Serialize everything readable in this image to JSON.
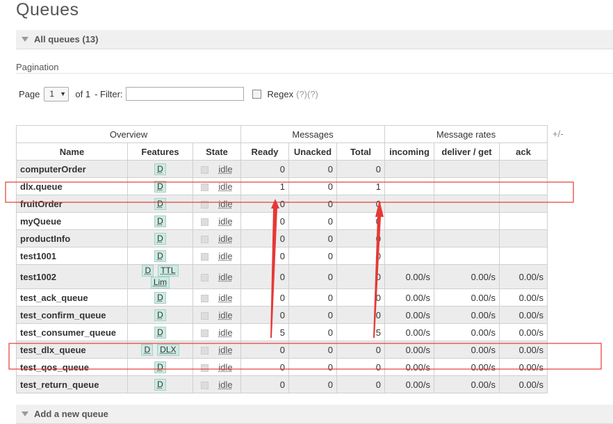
{
  "page_title": "Queues",
  "all_queues": {
    "label": "All queues (13)"
  },
  "pagination": {
    "heading": "Pagination",
    "page_label": "Page",
    "page_value": "1",
    "of_label": "of 1",
    "filter_label": "- Filter:",
    "filter_value": "",
    "regex_label": "Regex",
    "regex_help": "(?)(?)"
  },
  "table": {
    "groups": {
      "overview": "Overview",
      "messages": "Messages",
      "rates": "Message rates",
      "plusminus": "+/-"
    },
    "columns": {
      "name": "Name",
      "features": "Features",
      "state": "State",
      "ready": "Ready",
      "unacked": "Unacked",
      "total": "Total",
      "incoming": "incoming",
      "deliver": "deliver / get",
      "ack": "ack"
    },
    "rows": [
      {
        "name": "computerOrder",
        "features": [
          "D"
        ],
        "state": "idle",
        "ready": "0",
        "unacked": "0",
        "total": "0",
        "incoming": "",
        "deliver": "",
        "ack": ""
      },
      {
        "name": "dlx.queue",
        "features": [
          "D"
        ],
        "state": "idle",
        "ready": "1",
        "unacked": "0",
        "total": "1",
        "incoming": "",
        "deliver": "",
        "ack": ""
      },
      {
        "name": "fruitOrder",
        "features": [
          "D"
        ],
        "state": "idle",
        "ready": "0",
        "unacked": "0",
        "total": "0",
        "incoming": "",
        "deliver": "",
        "ack": ""
      },
      {
        "name": "myQueue",
        "features": [
          "D"
        ],
        "state": "idle",
        "ready": "0",
        "unacked": "0",
        "total": "0",
        "incoming": "",
        "deliver": "",
        "ack": ""
      },
      {
        "name": "productInfo",
        "features": [
          "D"
        ],
        "state": "idle",
        "ready": "0",
        "unacked": "0",
        "total": "0",
        "incoming": "",
        "deliver": "",
        "ack": ""
      },
      {
        "name": "test1001",
        "features": [
          "D"
        ],
        "state": "idle",
        "ready": "0",
        "unacked": "0",
        "total": "0",
        "incoming": "",
        "deliver": "",
        "ack": ""
      },
      {
        "name": "test1002",
        "features": [
          "D",
          "TTL",
          "Lim"
        ],
        "state": "idle",
        "ready": "0",
        "unacked": "0",
        "total": "0",
        "incoming": "0.00/s",
        "deliver": "0.00/s",
        "ack": "0.00/s"
      },
      {
        "name": "test_ack_queue",
        "features": [
          "D"
        ],
        "state": "idle",
        "ready": "0",
        "unacked": "0",
        "total": "0",
        "incoming": "0.00/s",
        "deliver": "0.00/s",
        "ack": "0.00/s"
      },
      {
        "name": "test_confirm_queue",
        "features": [
          "D"
        ],
        "state": "idle",
        "ready": "0",
        "unacked": "0",
        "total": "0",
        "incoming": "0.00/s",
        "deliver": "0.00/s",
        "ack": "0.00/s"
      },
      {
        "name": "test_consumer_queue",
        "features": [
          "D"
        ],
        "state": "idle",
        "ready": "5",
        "unacked": "0",
        "total": "5",
        "incoming": "0.00/s",
        "deliver": "0.00/s",
        "ack": "0.00/s"
      },
      {
        "name": "test_dlx_queue",
        "features": [
          "D",
          "DLX"
        ],
        "state": "idle",
        "ready": "0",
        "unacked": "0",
        "total": "0",
        "incoming": "0.00/s",
        "deliver": "0.00/s",
        "ack": "0.00/s"
      },
      {
        "name": "test_qos_queue",
        "features": [
          "D"
        ],
        "state": "idle",
        "ready": "0",
        "unacked": "0",
        "total": "0",
        "incoming": "0.00/s",
        "deliver": "0.00/s",
        "ack": "0.00/s"
      },
      {
        "name": "test_return_queue",
        "features": [
          "D"
        ],
        "state": "idle",
        "ready": "0",
        "unacked": "0",
        "total": "0",
        "incoming": "0.00/s",
        "deliver": "0.00/s",
        "ack": "0.00/s"
      }
    ]
  },
  "add_queue": {
    "label": "Add a new queue"
  },
  "colors": {
    "annotation": "#e53935",
    "tag_bg": "#cdeae3",
    "row_alt": "#ececec"
  }
}
